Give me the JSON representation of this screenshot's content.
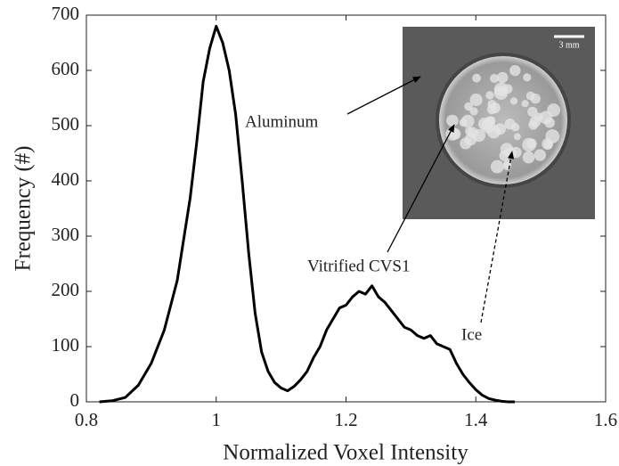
{
  "chart_data": {
    "type": "line",
    "x_label": "Normalized Voxel Intensity",
    "y_label": "Frequency (#)",
    "x": [
      0.82,
      0.84,
      0.86,
      0.88,
      0.9,
      0.92,
      0.94,
      0.96,
      0.97,
      0.98,
      0.99,
      1.0,
      1.01,
      1.02,
      1.03,
      1.04,
      1.05,
      1.06,
      1.07,
      1.08,
      1.09,
      1.1,
      1.11,
      1.12,
      1.13,
      1.14,
      1.15,
      1.16,
      1.17,
      1.18,
      1.19,
      1.2,
      1.21,
      1.22,
      1.23,
      1.24,
      1.25,
      1.26,
      1.27,
      1.28,
      1.29,
      1.3,
      1.31,
      1.32,
      1.33,
      1.34,
      1.35,
      1.36,
      1.37,
      1.38,
      1.39,
      1.4,
      1.41,
      1.42,
      1.43,
      1.44,
      1.45,
      1.46
    ],
    "values": [
      0,
      2,
      8,
      30,
      70,
      130,
      220,
      370,
      470,
      580,
      640,
      680,
      650,
      600,
      520,
      400,
      270,
      160,
      90,
      55,
      35,
      25,
      20,
      28,
      40,
      55,
      80,
      100,
      130,
      150,
      170,
      175,
      190,
      200,
      195,
      210,
      190,
      180,
      165,
      150,
      135,
      130,
      120,
      115,
      120,
      105,
      100,
      95,
      70,
      50,
      35,
      22,
      12,
      6,
      3,
      1,
      0,
      0
    ],
    "color": "#000000",
    "xlim": [
      0.8,
      1.6
    ],
    "xticks": [
      0.8,
      1,
      1.2,
      1.4,
      1.6
    ],
    "ylim": [
      0,
      700
    ],
    "yticks": [
      0,
      100,
      200,
      300,
      400,
      500,
      600,
      700
    ],
    "annotations": [
      "Aluminum",
      "Vitrified CVS1",
      "Ice",
      "3 mm"
    ]
  }
}
